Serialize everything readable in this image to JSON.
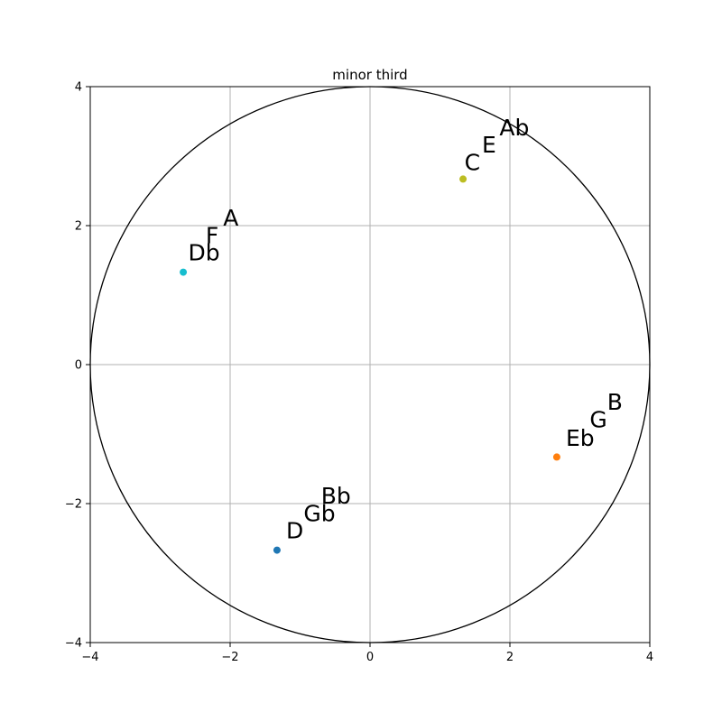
{
  "chart_data": {
    "type": "scatter",
    "title": "minor third",
    "xlabel": "",
    "ylabel": "",
    "xlim": [
      -4,
      4
    ],
    "ylim": [
      -4,
      4
    ],
    "x_ticks": [
      -4,
      -2,
      0,
      2,
      4
    ],
    "y_ticks": [
      -4,
      -2,
      0,
      2,
      4
    ],
    "x_tick_labels": [
      "−4",
      "−2",
      "0",
      "2",
      "4"
    ],
    "y_tick_labels": [
      "−4",
      "−2",
      "0",
      "2",
      "4"
    ],
    "grid": true,
    "circle": {
      "cx": 0,
      "cy": 0,
      "r": 4,
      "color": "#000000"
    },
    "points": [
      {
        "x": -1.33,
        "y": -2.67,
        "color": "#1f77b4"
      },
      {
        "x": 2.67,
        "y": -1.33,
        "color": "#ff7f0e"
      },
      {
        "x": 1.33,
        "y": 2.67,
        "color": "#bcbd22"
      },
      {
        "x": -2.67,
        "y": 1.33,
        "color": "#17becf"
      }
    ],
    "annotations": [
      {
        "text": "D",
        "x": -1.2,
        "y": -2.5
      },
      {
        "text": "Gb",
        "x": -0.95,
        "y": -2.25
      },
      {
        "text": "Bb",
        "x": -0.7,
        "y": -2.0
      },
      {
        "text": "Eb",
        "x": 2.8,
        "y": -1.17
      },
      {
        "text": "G",
        "x": 3.14,
        "y": -0.9
      },
      {
        "text": "B",
        "x": 3.39,
        "y": -0.65
      },
      {
        "text": "C",
        "x": 1.35,
        "y": 2.8
      },
      {
        "text": "E",
        "x": 1.6,
        "y": 3.05
      },
      {
        "text": "Ab",
        "x": 1.85,
        "y": 3.3
      },
      {
        "text": "Db",
        "x": -2.6,
        "y": 1.5
      },
      {
        "text": "F",
        "x": -2.35,
        "y": 1.75
      },
      {
        "text": "A",
        "x": -2.1,
        "y": 2.0
      }
    ]
  }
}
